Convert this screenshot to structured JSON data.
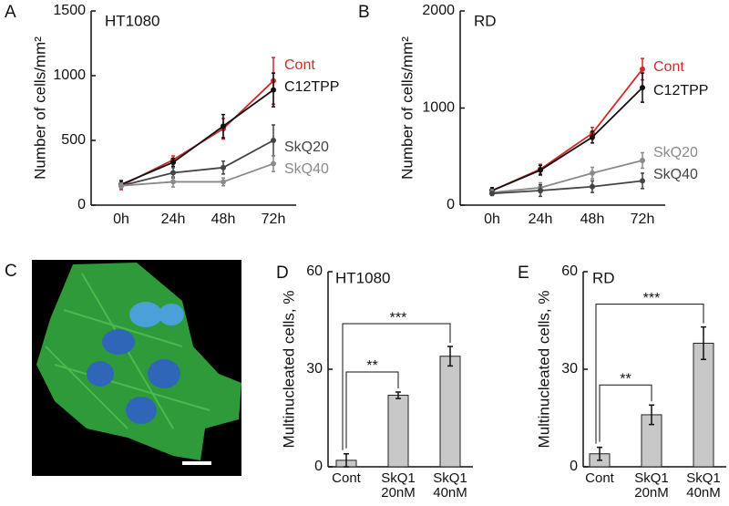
{
  "chart_data": [
    {
      "type": "line",
      "panel": "A",
      "title": "HT1080",
      "ylabel": "Number of cells/mm²",
      "categories": [
        "0h",
        "24h",
        "48h",
        "72h"
      ],
      "ylim": [
        0,
        1500
      ],
      "yticks": [
        0,
        500,
        1000,
        1500
      ],
      "series": [
        {
          "name": "Cont",
          "color": "#d42a2a",
          "values": [
            150,
            350,
            590,
            960
          ],
          "errors": [
            30,
            30,
            80,
            180
          ]
        },
        {
          "name": "C12TPP",
          "color": "#111111",
          "values": [
            160,
            330,
            610,
            890
          ],
          "errors": [
            30,
            30,
            90,
            130
          ]
        },
        {
          "name": "SkQ20",
          "color": "#444444",
          "values": [
            150,
            250,
            290,
            500
          ],
          "errors": [
            20,
            40,
            50,
            120
          ]
        },
        {
          "name": "SkQ40",
          "color": "#8a8a8a",
          "values": [
            150,
            180,
            180,
            320
          ],
          "errors": [
            20,
            40,
            30,
            60
          ]
        }
      ]
    },
    {
      "type": "line",
      "panel": "B",
      "title": "RD",
      "ylabel": "Number of cells/mm²",
      "categories": [
        "0h",
        "24h",
        "48h",
        "72h"
      ],
      "ylim": [
        0,
        2000
      ],
      "yticks": [
        0,
        1000,
        2000
      ],
      "series": [
        {
          "name": "Cont",
          "color": "#d42a2a",
          "values": [
            150,
            370,
            740,
            1400
          ],
          "errors": [
            30,
            50,
            60,
            110
          ]
        },
        {
          "name": "C12TPP",
          "color": "#111111",
          "values": [
            150,
            360,
            700,
            1210
          ],
          "errors": [
            30,
            50,
            60,
            150
          ]
        },
        {
          "name": "SkQ20",
          "color": "#8a8a8a",
          "values": [
            130,
            180,
            330,
            460
          ],
          "errors": [
            30,
            50,
            60,
            80
          ]
        },
        {
          "name": "SkQ40",
          "color": "#444444",
          "values": [
            120,
            150,
            190,
            250
          ],
          "errors": [
            20,
            60,
            60,
            80
          ]
        }
      ]
    },
    {
      "type": "image",
      "panel": "C"
    },
    {
      "type": "bar",
      "panel": "D",
      "title": "HT1080",
      "ylabel": "Multinucleated cells, %",
      "categories": [
        "Cont",
        "SkQ1\n20nM",
        "SkQ1\n40nM"
      ],
      "values": [
        2,
        22,
        34
      ],
      "errors": [
        2,
        1,
        3
      ],
      "color": "#c8c8c8",
      "ylim": [
        0,
        60
      ],
      "yticks": [
        0,
        30,
        60
      ],
      "annotations": [
        "**",
        "***"
      ]
    },
    {
      "type": "bar",
      "panel": "E",
      "title": "RD",
      "ylabel": "Multinucleated cells, %",
      "categories": [
        "Cont",
        "SkQ1\n20nM",
        "SkQ1\n40nM"
      ],
      "values": [
        4,
        16,
        38
      ],
      "errors": [
        2,
        3,
        5
      ],
      "color": "#c8c8c8",
      "ylim": [
        0,
        60
      ],
      "yticks": [
        0,
        30,
        60
      ],
      "annotations": [
        "**",
        "***"
      ]
    }
  ]
}
